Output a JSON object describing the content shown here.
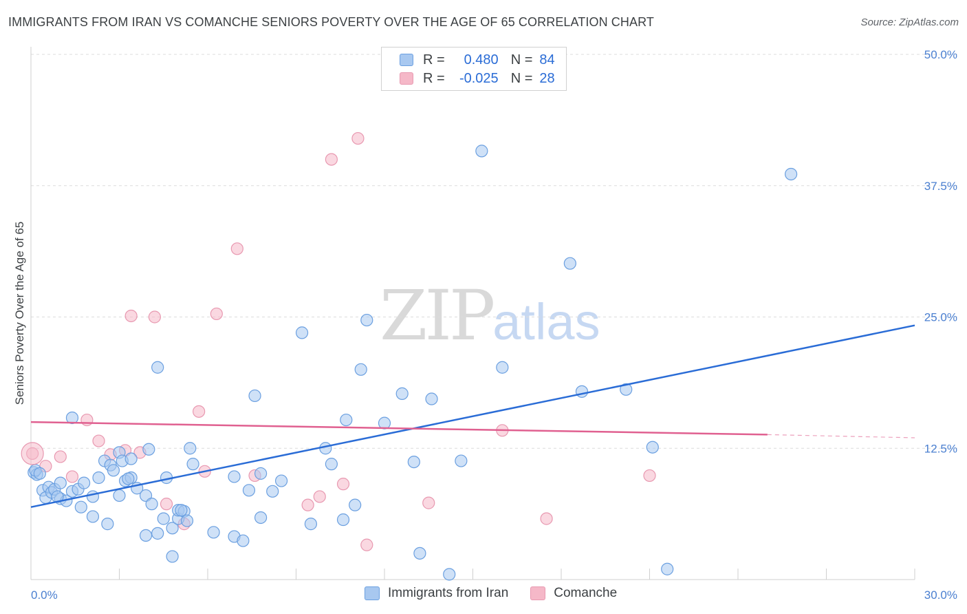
{
  "title": "IMMIGRANTS FROM IRAN VS COMANCHE SENIORS POVERTY OVER THE AGE OF 65 CORRELATION CHART",
  "source": "Source: ZipAtlas.com",
  "watermark": {
    "zip": "ZIP",
    "atlas": "atlas"
  },
  "legend": {
    "rows": [
      {
        "r_label": "R =",
        "r_value": "0.480",
        "n_label": "N =",
        "n_value": "84",
        "color": "#a8c8f0"
      },
      {
        "r_label": "R =",
        "r_value": "-0.025",
        "n_label": "N =",
        "n_value": "28",
        "color": "#f5b8c8"
      }
    ]
  },
  "bottom_legend": [
    {
      "label": "Immigrants from Iran",
      "color": "#a8c8f0"
    },
    {
      "label": "Comanche",
      "color": "#f5b8c8"
    }
  ],
  "chart_data": {
    "type": "scatter",
    "title": "IMMIGRANTS FROM IRAN VS COMANCHE SENIORS POVERTY OVER THE AGE OF 65 CORRELATION CHART",
    "xlabel": "",
    "ylabel": "Seniors Poverty Over the Age of 65",
    "xlim": [
      0,
      30
    ],
    "ylim": [
      0,
      50
    ],
    "x_tick_labels": [
      "0.0%",
      "30.0%"
    ],
    "y_ticks": [
      12.5,
      25.0,
      37.5,
      50.0
    ],
    "y_tick_labels": [
      "12.5%",
      "25.0%",
      "37.5%",
      "50.0%"
    ],
    "grid": "horizontal dashed",
    "legend_position": "top-center",
    "series": [
      {
        "name": "Immigrants from Iran",
        "color": "#a8c8f0",
        "stroke": "#6a9fe0",
        "trend": {
          "x": [
            0,
            30
          ],
          "y": [
            6.9,
            24.2
          ],
          "color": "#2a6cd6"
        },
        "points": [
          [
            0.1,
            10.2
          ],
          [
            0.2,
            10.0
          ],
          [
            0.4,
            8.5
          ],
          [
            0.5,
            7.8
          ],
          [
            0.6,
            8.8
          ],
          [
            0.7,
            8.3
          ],
          [
            0.8,
            8.6
          ],
          [
            1.0,
            7.7
          ],
          [
            1.0,
            9.2
          ],
          [
            1.2,
            7.5
          ],
          [
            1.4,
            8.4
          ],
          [
            1.4,
            15.4
          ],
          [
            1.6,
            8.6
          ],
          [
            1.7,
            6.9
          ],
          [
            1.8,
            9.2
          ],
          [
            2.1,
            7.9
          ],
          [
            2.1,
            6.0
          ],
          [
            2.3,
            9.7
          ],
          [
            2.5,
            11.3
          ],
          [
            2.6,
            5.3
          ],
          [
            2.7,
            10.9
          ],
          [
            2.8,
            10.4
          ],
          [
            3.0,
            12.1
          ],
          [
            3.0,
            8.0
          ],
          [
            3.1,
            11.3
          ],
          [
            3.2,
            9.4
          ],
          [
            3.4,
            9.7
          ],
          [
            3.4,
            11.5
          ],
          [
            3.6,
            8.7
          ],
          [
            3.9,
            8.0
          ],
          [
            3.9,
            4.2
          ],
          [
            4.0,
            12.4
          ],
          [
            4.1,
            7.2
          ],
          [
            4.3,
            4.4
          ],
          [
            4.3,
            20.2
          ],
          [
            4.5,
            5.8
          ],
          [
            4.6,
            9.7
          ],
          [
            4.8,
            4.9
          ],
          [
            4.8,
            2.2
          ],
          [
            5.0,
            5.8
          ],
          [
            5.0,
            6.6
          ],
          [
            5.2,
            6.5
          ],
          [
            5.3,
            5.6
          ],
          [
            5.4,
            12.5
          ],
          [
            5.5,
            11.0
          ],
          [
            6.2,
            4.5
          ],
          [
            6.9,
            9.8
          ],
          [
            6.9,
            4.1
          ],
          [
            7.2,
            3.7
          ],
          [
            7.4,
            8.5
          ],
          [
            7.6,
            17.5
          ],
          [
            7.8,
            5.9
          ],
          [
            7.8,
            10.1
          ],
          [
            8.2,
            8.4
          ],
          [
            8.5,
            9.4
          ],
          [
            9.2,
            23.5
          ],
          [
            9.5,
            5.3
          ],
          [
            10.0,
            12.5
          ],
          [
            10.2,
            11.0
          ],
          [
            10.6,
            5.7
          ],
          [
            10.7,
            15.2
          ],
          [
            11.0,
            7.1
          ],
          [
            11.2,
            20.0
          ],
          [
            11.4,
            24.7
          ],
          [
            12.0,
            14.9
          ],
          [
            12.6,
            17.7
          ],
          [
            13.0,
            11.2
          ],
          [
            13.2,
            2.5
          ],
          [
            13.6,
            17.2
          ],
          [
            14.2,
            0.5
          ],
          [
            14.6,
            11.3
          ],
          [
            15.3,
            40.8
          ],
          [
            16.0,
            20.2
          ],
          [
            18.3,
            30.1
          ],
          [
            18.7,
            17.9
          ],
          [
            20.2,
            18.1
          ],
          [
            21.1,
            12.6
          ],
          [
            21.6,
            1.0
          ],
          [
            25.8,
            38.6
          ],
          [
            0.15,
            10.4
          ],
          [
            0.3,
            10.1
          ],
          [
            0.9,
            7.9
          ],
          [
            3.3,
            9.6
          ],
          [
            5.1,
            6.6
          ]
        ]
      },
      {
        "name": "Comanche",
        "color": "#f5b8c8",
        "stroke": "#e898b0",
        "trend": {
          "x": [
            0,
            25
          ],
          "y": [
            15.0,
            13.8
          ],
          "color": "#e06090",
          "dashed_to": [
            30,
            13.5
          ]
        },
        "points": [
          [
            0.05,
            12.0
          ],
          [
            0.5,
            10.8
          ],
          [
            1.0,
            11.7
          ],
          [
            1.4,
            9.8
          ],
          [
            1.9,
            15.2
          ],
          [
            2.3,
            13.2
          ],
          [
            2.7,
            11.9
          ],
          [
            3.2,
            12.3
          ],
          [
            3.4,
            25.1
          ],
          [
            3.7,
            12.1
          ],
          [
            4.2,
            25.0
          ],
          [
            4.6,
            7.2
          ],
          [
            5.2,
            5.3
          ],
          [
            5.7,
            16.0
          ],
          [
            5.9,
            10.3
          ],
          [
            6.3,
            25.3
          ],
          [
            7.0,
            31.5
          ],
          [
            7.6,
            9.9
          ],
          [
            9.4,
            7.1
          ],
          [
            9.8,
            7.9
          ],
          [
            10.2,
            40.0
          ],
          [
            10.6,
            9.1
          ],
          [
            11.1,
            42.0
          ],
          [
            11.4,
            3.3
          ],
          [
            13.5,
            7.3
          ],
          [
            16.0,
            14.2
          ],
          [
            17.5,
            5.8
          ],
          [
            21.0,
            9.9
          ]
        ]
      }
    ]
  }
}
